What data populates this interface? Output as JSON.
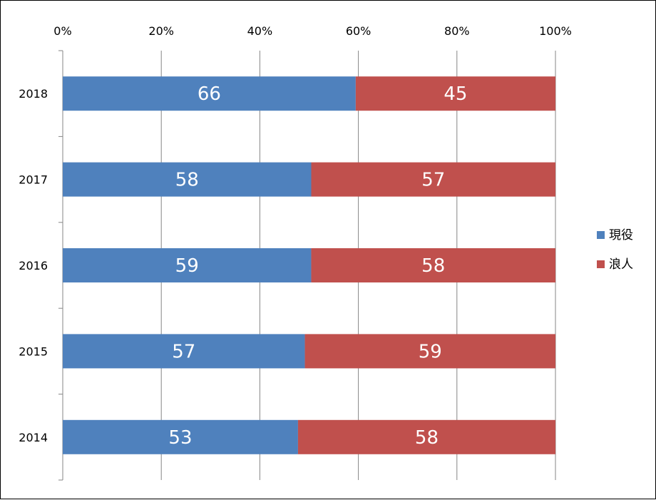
{
  "chart_data": {
    "type": "bar",
    "orientation": "horizontal",
    "stacking": "percent",
    "categories": [
      "2018",
      "2017",
      "2016",
      "2015",
      "2014"
    ],
    "series": [
      {
        "name": "現役",
        "values": [
          66,
          58,
          59,
          57,
          53
        ],
        "color": "#4f81bd"
      },
      {
        "name": "浪人",
        "values": [
          45,
          57,
          58,
          59,
          58
        ],
        "color": "#c0504d"
      }
    ],
    "xticks": [
      "0%",
      "20%",
      "40%",
      "60%",
      "80%",
      "100%"
    ],
    "xlim": [
      0,
      100
    ],
    "x_axis_position": "top",
    "grid": true,
    "legend": "right",
    "title": "",
    "xlabel": "",
    "ylabel": ""
  }
}
